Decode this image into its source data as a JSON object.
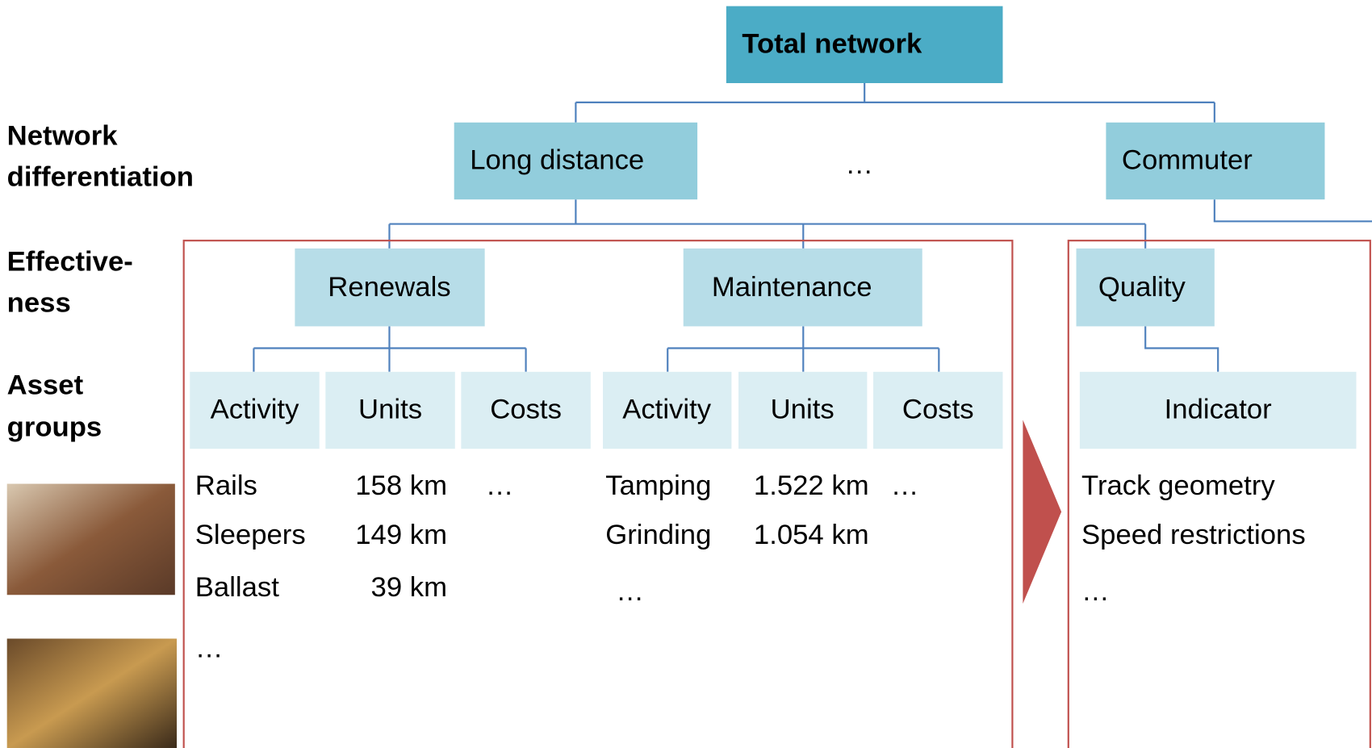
{
  "root": {
    "label": "Total network"
  },
  "level1": [
    {
      "label": "Long distance"
    },
    {
      "label": "…"
    },
    {
      "label": "Commuter"
    }
  ],
  "row_labels": [
    {
      "lines": [
        "Network",
        "differentiation"
      ]
    },
    {
      "lines": [
        "Effective-",
        "ness"
      ]
    },
    {
      "lines": [
        "Asset",
        "groups"
      ]
    }
  ],
  "level2": [
    {
      "label": "Renewals"
    },
    {
      "label": "Maintenance"
    },
    {
      "label": "Quality"
    }
  ],
  "level3": [
    {
      "label": "Activity"
    },
    {
      "label": "Units"
    },
    {
      "label": "Costs"
    },
    {
      "label": "Activity"
    },
    {
      "label": "Units"
    },
    {
      "label": "Costs"
    },
    {
      "label": "Indicator"
    }
  ],
  "renewals_table": {
    "rows": [
      [
        "Rails",
        "158 km",
        "…"
      ],
      [
        "Sleepers",
        "149 km"
      ],
      [
        "Ballast",
        "39 km"
      ],
      [
        "…"
      ]
    ]
  },
  "maintenance_table": {
    "rows": [
      [
        "Tamping",
        "1.522 km",
        "…"
      ],
      [
        "Grinding",
        "1.054 km"
      ],
      [
        "…"
      ]
    ]
  },
  "quality_list": {
    "items": [
      "Track geometry",
      "Speed restrictions",
      "…"
    ]
  }
}
